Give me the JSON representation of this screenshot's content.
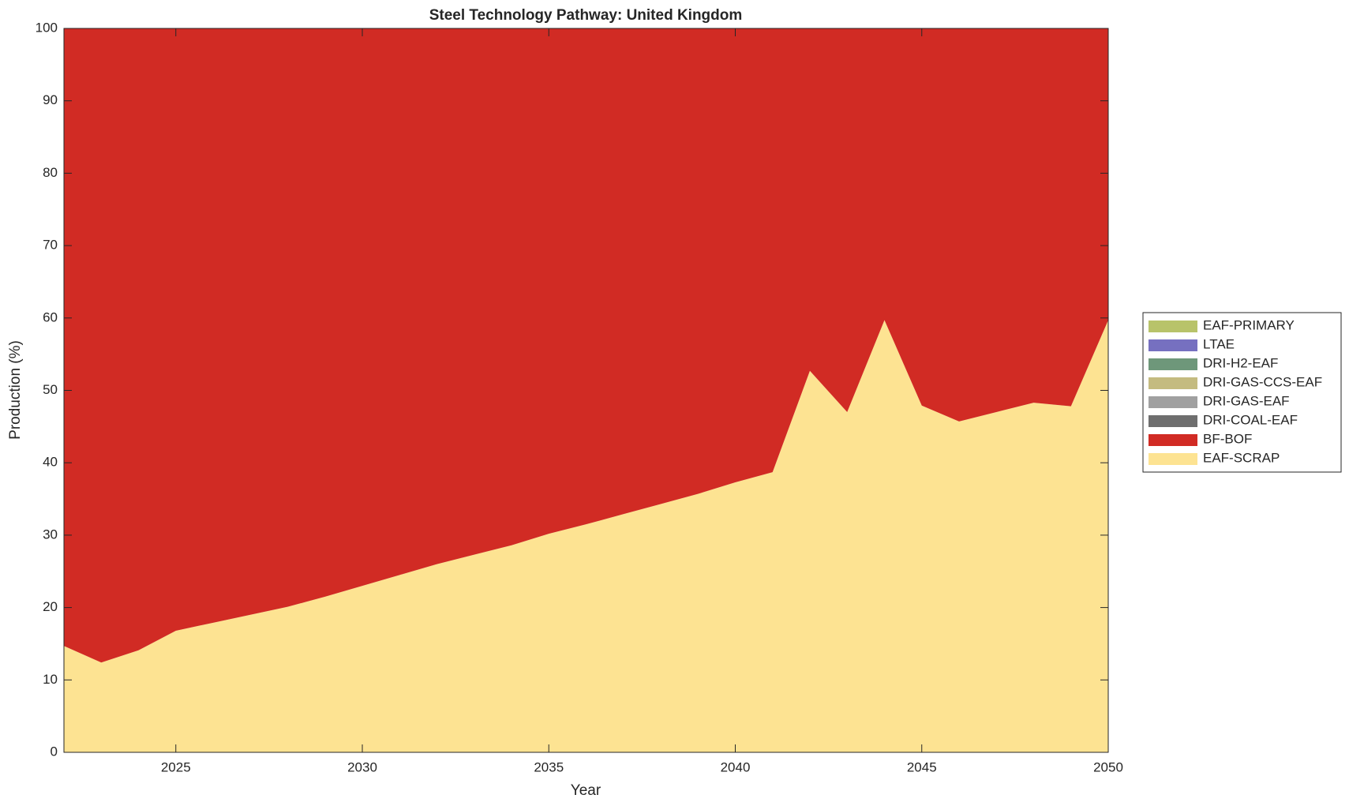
{
  "chart_data": {
    "type": "stacked_area",
    "title": "Steel Technology Pathway: United Kingdom",
    "x_label": "Year",
    "y_label": "Production (%)",
    "x": [
      2022,
      2023,
      2024,
      2025,
      2026,
      2027,
      2028,
      2029,
      2030,
      2031,
      2032,
      2033,
      2034,
      2035,
      2036,
      2037,
      2038,
      2039,
      2040,
      2041,
      2042,
      2043,
      2044,
      2045,
      2046,
      2047,
      2048,
      2049,
      2050
    ],
    "series": [
      {
        "name": "EAF-SCRAP",
        "color": "#fde392",
        "values": [
          14.7,
          12.4,
          14.1,
          16.8,
          17.9,
          19.0,
          20.1,
          21.5,
          23.0,
          24.5,
          26.0,
          27.3,
          28.6,
          30.2,
          31.5,
          32.9,
          34.3,
          35.7,
          37.3,
          38.7,
          52.7,
          47.0,
          59.7,
          47.9,
          45.7,
          47.0,
          48.3,
          47.8,
          59.7
        ]
      },
      {
        "name": "BF-BOF",
        "color": "#d12b24",
        "values": [
          85.3,
          87.6,
          85.9,
          83.2,
          82.1,
          81.0,
          79.9,
          78.5,
          77.0,
          75.5,
          74.0,
          72.7,
          71.4,
          69.8,
          68.5,
          67.1,
          65.7,
          64.3,
          62.7,
          61.3,
          47.3,
          53.0,
          40.3,
          52.1,
          54.3,
          53.0,
          51.7,
          52.2,
          40.3
        ]
      },
      {
        "name": "DRI-COAL-EAF",
        "color": "#6e6e6e",
        "values": [
          0,
          0,
          0,
          0,
          0,
          0,
          0,
          0,
          0,
          0,
          0,
          0,
          0,
          0,
          0,
          0,
          0,
          0,
          0,
          0,
          0,
          0,
          0,
          0,
          0,
          0,
          0,
          0,
          0
        ]
      },
      {
        "name": "DRI-GAS-EAF",
        "color": "#a0a0a0",
        "values": [
          0,
          0,
          0,
          0,
          0,
          0,
          0,
          0,
          0,
          0,
          0,
          0,
          0,
          0,
          0,
          0,
          0,
          0,
          0,
          0,
          0,
          0,
          0,
          0,
          0,
          0,
          0,
          0,
          0
        ]
      },
      {
        "name": "DRI-GAS-CCS-EAF",
        "color": "#c4bb80",
        "values": [
          0,
          0,
          0,
          0,
          0,
          0,
          0,
          0,
          0,
          0,
          0,
          0,
          0,
          0,
          0,
          0,
          0,
          0,
          0,
          0,
          0,
          0,
          0,
          0,
          0,
          0,
          0,
          0,
          0
        ]
      },
      {
        "name": "DRI-H2-EAF",
        "color": "#6e977a",
        "values": [
          0,
          0,
          0,
          0,
          0,
          0,
          0,
          0,
          0,
          0,
          0,
          0,
          0,
          0,
          0,
          0,
          0,
          0,
          0,
          0,
          0,
          0,
          0,
          0,
          0,
          0,
          0,
          0,
          0
        ]
      },
      {
        "name": "LTAE",
        "color": "#7670c0",
        "values": [
          0,
          0,
          0,
          0,
          0,
          0,
          0,
          0,
          0,
          0,
          0,
          0,
          0,
          0,
          0,
          0,
          0,
          0,
          0,
          0,
          0,
          0,
          0,
          0,
          0,
          0,
          0,
          0,
          0
        ]
      },
      {
        "name": "EAF-PRIMARY",
        "color": "#b8c36a",
        "values": [
          0,
          0,
          0,
          0,
          0,
          0,
          0,
          0,
          0,
          0,
          0,
          0,
          0,
          0,
          0,
          0,
          0,
          0,
          0,
          0,
          0,
          0,
          0,
          0,
          0,
          0,
          0,
          0,
          0
        ]
      }
    ],
    "xlim": [
      2022,
      2050
    ],
    "xticks": [
      2025,
      2030,
      2035,
      2040,
      2045,
      2050
    ],
    "ylim": [
      0,
      100
    ],
    "yticks": [
      0,
      10,
      20,
      30,
      40,
      50,
      60,
      70,
      80,
      90,
      100
    ],
    "legend": "right"
  }
}
